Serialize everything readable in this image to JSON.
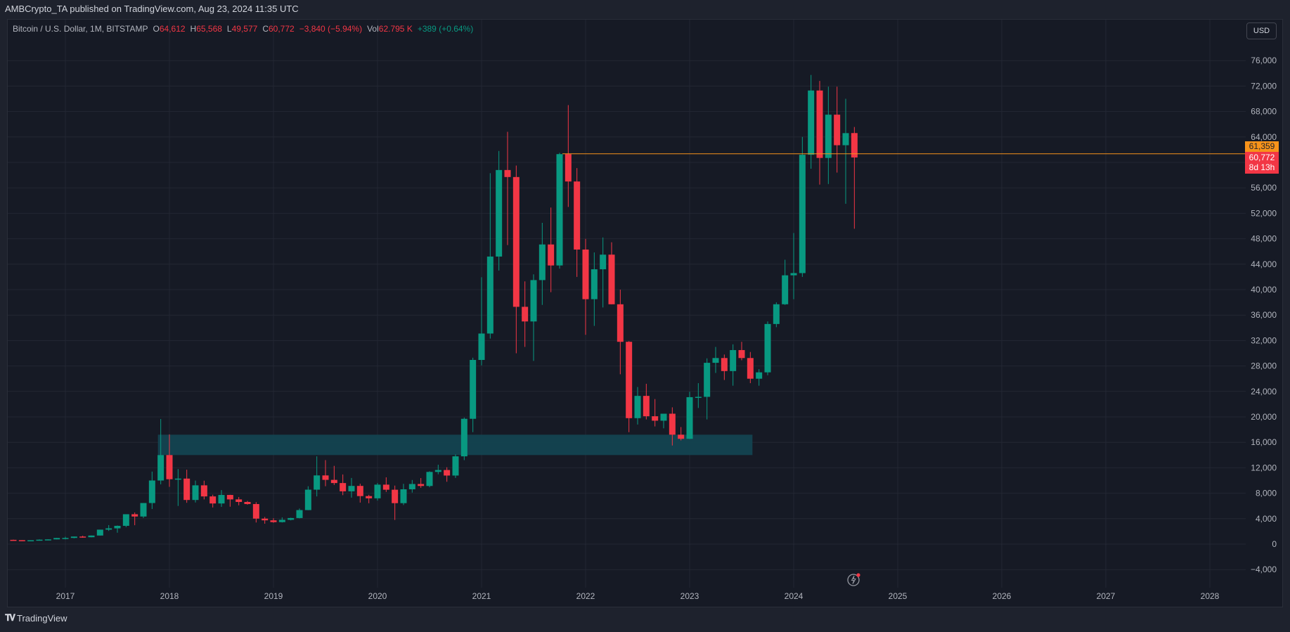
{
  "header": {
    "published": "AMBCrypto_TA published on TradingView.com, Aug 23, 2024 11:35 UTC"
  },
  "legend": {
    "symbol": "Bitcoin / U.S. Dollar, 1M, BITSTAMP",
    "o_label": "O",
    "o_value": "64,612",
    "h_label": "H",
    "h_value": "65,568",
    "l_label": "L",
    "l_value": "49,577",
    "c_label": "C",
    "c_value": "60,772",
    "change": "−3,840 (−5.94%)",
    "vol_label": "Vol",
    "vol_value": "62.795 K",
    "vol_change": "+389 (+0.64%)"
  },
  "currency_button": "USD",
  "price_tags": {
    "line_price": "61,359",
    "last_price": "60,772",
    "countdown": "8d 13h"
  },
  "footer": {
    "brand": "TradingView",
    "logo_icon": "tradingview-logo-icon"
  },
  "colors": {
    "up": "#089981",
    "down": "#f23645",
    "zone": "#134350",
    "hline": "#f7931a",
    "grid": "#232733",
    "background": "#161a25"
  },
  "chart_data": {
    "type": "candlestick",
    "title": "Bitcoin / U.S. Dollar, 1M, BITSTAMP",
    "xlabel": "",
    "ylabel": "USD",
    "ylim": [
      -6000,
      80000
    ],
    "y_ticks": [
      -4000,
      0,
      4000,
      8000,
      12000,
      16000,
      20000,
      24000,
      28000,
      32000,
      36000,
      40000,
      44000,
      48000,
      52000,
      56000,
      60000,
      64000,
      68000,
      72000,
      76000
    ],
    "y_tick_labels": [
      "−4,000",
      "0",
      "4,000",
      "8,000",
      "12,000",
      "16,000",
      "20,000",
      "24,000",
      "28,000",
      "32,000",
      "36,000",
      "40,000",
      "44,000",
      "48,000",
      "52,000",
      "56,000",
      "60,000",
      "64,000",
      "68,000",
      "72,000",
      "76,000"
    ],
    "x_ticks": [
      "2017",
      "2018",
      "2019",
      "2020",
      "2021",
      "2022",
      "2023",
      "2024",
      "2025",
      "2026",
      "2027",
      "2028"
    ],
    "grid": true,
    "start_month": "2016-07",
    "ohlc": [
      [
        673,
        704,
        607,
        622
      ],
      [
        622,
        626,
        533,
        575
      ],
      [
        575,
        611,
        570,
        608
      ],
      [
        608,
        741,
        604,
        700
      ],
      [
        700,
        755,
        683,
        745
      ],
      [
        745,
        980,
        745,
        964
      ],
      [
        964,
        1155,
        750,
        970
      ],
      [
        970,
        1200,
        914,
        1190
      ],
      [
        1190,
        1325,
        1004,
        1080
      ],
      [
        1080,
        1350,
        1060,
        1350
      ],
      [
        1350,
        2275,
        1346,
        2275
      ],
      [
        2275,
        2990,
        2075,
        2480
      ],
      [
        2480,
        2935,
        1800,
        2875
      ],
      [
        2875,
        4480,
        2670,
        4700
      ],
      [
        4700,
        4980,
        2970,
        4340
      ],
      [
        4340,
        6470,
        4100,
        6460
      ],
      [
        6460,
        11400,
        5520,
        10000
      ],
      [
        10000,
        19666,
        9400,
        14000
      ],
      [
        14000,
        17250,
        9000,
        10200
      ],
      [
        10200,
        11800,
        6000,
        10300
      ],
      [
        10300,
        11700,
        6500,
        6940
      ],
      [
        6940,
        9990,
        6550,
        9240
      ],
      [
        9240,
        9970,
        7030,
        7500
      ],
      [
        7500,
        7770,
        5760,
        6390
      ],
      [
        6390,
        8500,
        5860,
        7730
      ],
      [
        7730,
        7760,
        5880,
        7030
      ],
      [
        7030,
        7400,
        6100,
        6630
      ],
      [
        6630,
        6800,
        6200,
        6300
      ],
      [
        6300,
        6600,
        3400,
        4010
      ],
      [
        4010,
        4270,
        3210,
        3740
      ],
      [
        3740,
        4080,
        3350,
        3460
      ],
      [
        3460,
        4200,
        3400,
        3820
      ],
      [
        3820,
        4150,
        3730,
        4100
      ],
      [
        4100,
        5600,
        4050,
        5350
      ],
      [
        5350,
        9100,
        5340,
        8560
      ],
      [
        8560,
        13800,
        7500,
        10800
      ],
      [
        10800,
        13200,
        9100,
        10100
      ],
      [
        10100,
        12300,
        9300,
        9600
      ],
      [
        9600,
        10950,
        7700,
        8300
      ],
      [
        8300,
        10400,
        7300,
        9150
      ],
      [
        9150,
        9500,
        6530,
        7550
      ],
      [
        7550,
        7750,
        6430,
        7200
      ],
      [
        7200,
        9600,
        6850,
        9350
      ],
      [
        9350,
        10500,
        8200,
        8550
      ],
      [
        8550,
        9200,
        3800,
        6440
      ],
      [
        6440,
        9470,
        6150,
        8620
      ],
      [
        8620,
        10080,
        8100,
        9450
      ],
      [
        9450,
        10380,
        8850,
        9140
      ],
      [
        9140,
        11450,
        8930,
        11350
      ],
      [
        11350,
        12480,
        10980,
        11650
      ],
      [
        11650,
        12080,
        9800,
        10780
      ],
      [
        10780,
        14100,
        10400,
        13800
      ],
      [
        13800,
        19900,
        13200,
        19700
      ],
      [
        19700,
        29300,
        17600,
        28950
      ],
      [
        28950,
        41950,
        28100,
        33100
      ],
      [
        33100,
        58300,
        32300,
        45200
      ],
      [
        45200,
        61800,
        43000,
        58800
      ],
      [
        58800,
        64800,
        47000,
        57700
      ],
      [
        57700,
        59500,
        30000,
        37300
      ],
      [
        37300,
        41300,
        31000,
        35000
      ],
      [
        35000,
        42400,
        28800,
        41500
      ],
      [
        41500,
        50500,
        37600,
        47100
      ],
      [
        47100,
        52900,
        39600,
        43800
      ],
      [
        43800,
        61500,
        43300,
        61300
      ],
      [
        61300,
        69000,
        53000,
        57000
      ],
      [
        57000,
        59100,
        42000,
        46300
      ],
      [
        46300,
        47990,
        32900,
        38500
      ],
      [
        38500,
        45850,
        34300,
        43200
      ],
      [
        43200,
        48200,
        37200,
        45500
      ],
      [
        45500,
        47450,
        37700,
        37700
      ],
      [
        37700,
        40000,
        26700,
        31800
      ],
      [
        31800,
        31900,
        17600,
        19800
      ],
      [
        19800,
        24700,
        18800,
        23300
      ],
      [
        23300,
        25200,
        19600,
        20100
      ],
      [
        20100,
        22800,
        18500,
        19400
      ],
      [
        19400,
        20500,
        18200,
        20500
      ],
      [
        20500,
        21500,
        15500,
        17200
      ],
      [
        17200,
        18400,
        16300,
        16550
      ],
      [
        16550,
        23950,
        16500,
        23100
      ],
      [
        23100,
        25300,
        21400,
        23150
      ],
      [
        23150,
        29200,
        19600,
        28500
      ],
      [
        28500,
        31000,
        26900,
        29250
      ],
      [
        29250,
        29800,
        25800,
        27200
      ],
      [
        27200,
        31400,
        24900,
        30500
      ],
      [
        30500,
        31800,
        28900,
        29250
      ],
      [
        29250,
        30200,
        25300,
        26000
      ],
      [
        26000,
        27500,
        24900,
        27000
      ],
      [
        27000,
        35000,
        26550,
        34600
      ],
      [
        34600,
        38000,
        34100,
        37700
      ],
      [
        37700,
        44700,
        37600,
        42250
      ],
      [
        42250,
        48900,
        38500,
        42600
      ],
      [
        42600,
        64000,
        42000,
        61200
      ],
      [
        61200,
        73750,
        59000,
        71300
      ],
      [
        71300,
        72800,
        56500,
        60700
      ],
      [
        60700,
        71900,
        56600,
        67500
      ],
      [
        67500,
        71900,
        58400,
        62700
      ],
      [
        62700,
        70000,
        53500,
        64600
      ],
      [
        64612,
        65568,
        49577,
        60772
      ]
    ],
    "zone": {
      "start_month": "2017-12",
      "end_month": "2023-08",
      "low": 14000,
      "high": 17200
    },
    "horizontal_line": {
      "start_month": "2021-10",
      "price": 61359
    },
    "annotations": [
      "61,359",
      "60,772",
      "8d 13h"
    ]
  }
}
